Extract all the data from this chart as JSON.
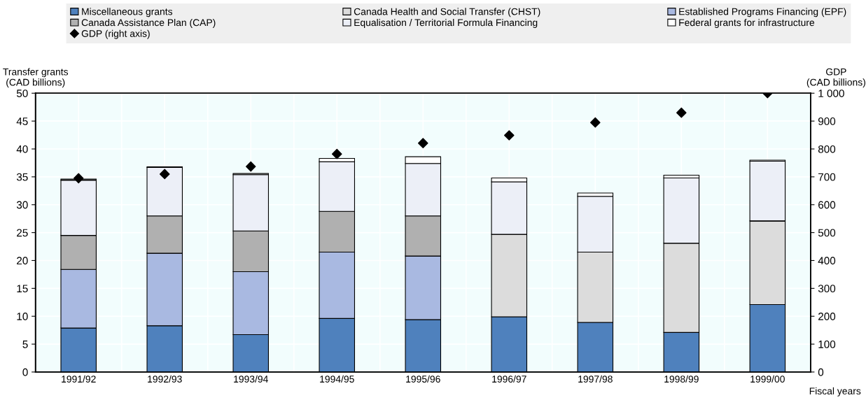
{
  "chart_data": {
    "type": "bar",
    "stacked": true,
    "categories": [
      "1991/92",
      "1992/93",
      "1993/94",
      "1994/95",
      "1995/96",
      "1996/97",
      "1997/98",
      "1998/99",
      "1999/00"
    ],
    "series": [
      {
        "name": "Miscellaneous grants",
        "color": "#4f81bd",
        "values": [
          7.9,
          8.3,
          6.7,
          9.6,
          9.4,
          9.9,
          8.9,
          7.1,
          12.1
        ]
      },
      {
        "name": "Canada Health and Social Transfer (CHST)",
        "color": "#dcdcdc",
        "values": [
          0,
          0,
          0,
          0,
          0,
          14.8,
          12.6,
          16.0,
          15.0
        ]
      },
      {
        "name": "Established Programs Financing (EPF)",
        "color": "#a9b9e1",
        "values": [
          10.5,
          13.0,
          11.3,
          11.9,
          11.4,
          0,
          0,
          0,
          0
        ]
      },
      {
        "name": "Canada Assistance Plan (CAP)",
        "color": "#b0b0b0",
        "values": [
          6.1,
          6.7,
          7.3,
          7.3,
          7.2,
          0,
          0,
          0,
          0
        ]
      },
      {
        "name": "Equalisation / Territorial Formula Financing",
        "color": "#eceff7",
        "values": [
          9.9,
          8.7,
          10.1,
          8.9,
          9.4,
          9.4,
          10.0,
          11.7,
          10.7
        ]
      },
      {
        "name": "Federal grants for infrastructure",
        "color": "#ffffff",
        "values": [
          0.2,
          0.1,
          0.2,
          0.6,
          1.2,
          0.7,
          0.6,
          0.5,
          0.2
        ]
      },
      {
        "name": "GDP (right axis)",
        "type": "scatter",
        "axis": "y2",
        "marker": "diamond",
        "color": "#000000",
        "values": [
          695,
          710,
          737,
          782,
          821,
          849,
          895,
          930,
          1000
        ]
      }
    ],
    "ylabel": "Transfer grants\n(CAD billions)",
    "y2label": "GDP\n(CAD billions)",
    "xlabel": "Fiscal years",
    "ylim": [
      0,
      50
    ],
    "yticks": [
      0,
      5,
      10,
      15,
      20,
      25,
      30,
      35,
      40,
      45,
      50
    ],
    "y2lim": [
      0,
      1000
    ],
    "y2ticks": [
      0,
      100,
      200,
      300,
      400,
      500,
      600,
      700,
      800,
      900,
      {
        "value": 1000,
        "label": "1 000"
      }
    ],
    "grid": true,
    "legend": "top"
  }
}
